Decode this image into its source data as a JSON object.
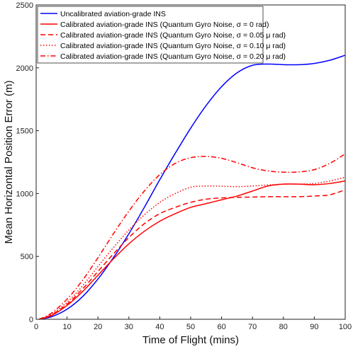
{
  "chart_data": {
    "type": "line",
    "title": "",
    "xlabel": "Time of Flight (mins)",
    "ylabel": "Mean Horizontal Position Error (m)",
    "xlim": [
      0,
      100
    ],
    "ylim": [
      0,
      2500
    ],
    "xticks": [
      0,
      10,
      20,
      30,
      40,
      50,
      60,
      70,
      80,
      90,
      100
    ],
    "yticks": [
      0,
      500,
      1000,
      1500,
      2000,
      2500
    ],
    "grid": false,
    "legend_position": "top-left",
    "series": [
      {
        "name": "Uncalibrated aviation-grade INS",
        "color": "#0000ff",
        "dash": "solid",
        "x": [
          1,
          5,
          10,
          15,
          20,
          25,
          30,
          35,
          40,
          45,
          50,
          55,
          60,
          65,
          70,
          75,
          80,
          85,
          90,
          95,
          100
        ],
        "y": [
          0,
          20,
          80,
          180,
          320,
          490,
          680,
          890,
          1110,
          1320,
          1520,
          1700,
          1850,
          1960,
          2020,
          2030,
          2025,
          2025,
          2035,
          2060,
          2100
        ]
      },
      {
        "name": "Calibrated aviation-grade INS (Quantum Gyro Noise, σ = 0 rad)",
        "color": "#ff0000",
        "dash": "solid",
        "x": [
          1,
          5,
          10,
          15,
          20,
          25,
          30,
          35,
          40,
          45,
          50,
          55,
          60,
          65,
          70,
          75,
          80,
          85,
          90,
          95,
          100
        ],
        "y": [
          0,
          30,
          110,
          220,
          350,
          480,
          600,
          700,
          780,
          840,
          890,
          920,
          950,
          980,
          1020,
          1060,
          1075,
          1075,
          1070,
          1080,
          1100
        ]
      },
      {
        "name": "Calibrated aviation-grade INS (Quantum Gyro Noise, σ = 0.05 μ rad)",
        "color": "#ff0000",
        "dash": "dashed",
        "x": [
          1,
          5,
          10,
          15,
          20,
          25,
          30,
          35,
          40,
          45,
          50,
          55,
          60,
          65,
          70,
          75,
          80,
          85,
          90,
          95,
          100
        ],
        "y": [
          0,
          35,
          120,
          240,
          380,
          520,
          650,
          760,
          840,
          890,
          930,
          955,
          965,
          970,
          972,
          975,
          975,
          975,
          980,
          990,
          1030
        ]
      },
      {
        "name": "Calibrated aviation-grade INS (Quantum Gyro Noise, σ = 0.10 μ rad)",
        "color": "#ff0000",
        "dash": "dotted",
        "x": [
          1,
          5,
          10,
          15,
          20,
          25,
          30,
          35,
          40,
          45,
          50,
          55,
          60,
          65,
          70,
          75,
          80,
          85,
          90,
          95,
          100
        ],
        "y": [
          0,
          40,
          135,
          265,
          420,
          570,
          710,
          830,
          930,
          1000,
          1050,
          1060,
          1058,
          1055,
          1060,
          1068,
          1075,
          1075,
          1080,
          1100,
          1130
        ]
      },
      {
        "name": "Calibrated aviation-grade INS (Quantum Gyro Noise, σ = 0.20 μ rad)",
        "color": "#ff0000",
        "dash": "dashdot",
        "x": [
          1,
          5,
          10,
          15,
          20,
          25,
          30,
          35,
          40,
          45,
          50,
          55,
          60,
          65,
          70,
          75,
          80,
          85,
          90,
          95,
          100
        ],
        "y": [
          0,
          50,
          160,
          310,
          490,
          680,
          860,
          1020,
          1150,
          1240,
          1285,
          1295,
          1280,
          1245,
          1205,
          1180,
          1170,
          1172,
          1190,
          1240,
          1315
        ]
      }
    ]
  }
}
